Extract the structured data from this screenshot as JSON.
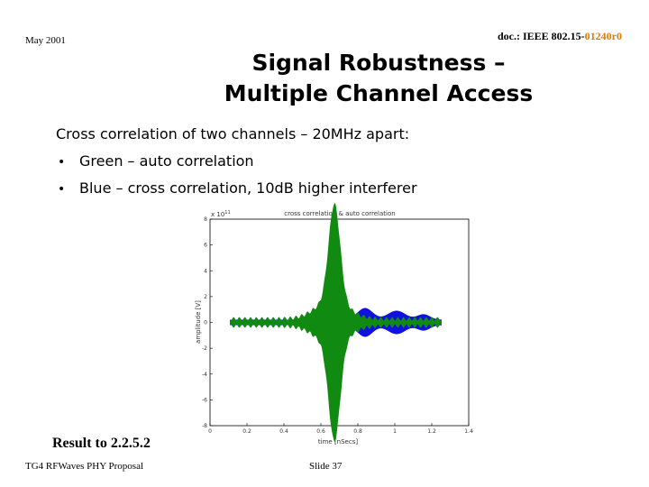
{
  "header": {
    "date": "May 2001",
    "doc_prefix": "doc.: IEEE 802.15-",
    "doc_number": "01240r0"
  },
  "title": {
    "lines": [
      "Signal Robustness –",
      "Multiple Channel Access"
    ]
  },
  "body": {
    "intro": "Cross correlation of two channels – 20MHz apart:",
    "bullets": [
      "Green – auto correlation",
      "Blue – cross correlation, 10dB higher interferer"
    ]
  },
  "figure": {
    "title": "cross correlation & auto correlation",
    "xlabel": "time [nSecs]",
    "ylabel": "amplitude [V]",
    "exponent": "x 10",
    "exponent_power": "11",
    "xticks": [
      0,
      0.2,
      0.4,
      0.6,
      0.8,
      1,
      1.2,
      1.4
    ],
    "yticks": [
      -8,
      -6,
      -4,
      -2,
      0,
      2,
      4,
      6,
      8
    ]
  },
  "result": "Result to 2.2.5.2",
  "footer": {
    "left": "TG4 RFWaves PHY Proposal",
    "center": "Slide 37"
  }
}
